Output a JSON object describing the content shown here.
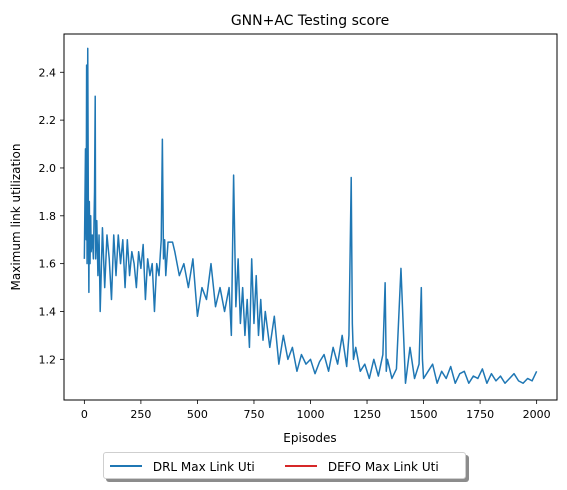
{
  "chart_data": {
    "type": "line",
    "title": "GNN+AC Testing score",
    "xlabel": "Episodes",
    "ylabel": "Maximum link utilization",
    "xlim": [
      -90,
      2090
    ],
    "ylim": [
      1.03,
      2.56
    ],
    "xticks": [
      0,
      250,
      500,
      750,
      1000,
      1250,
      1500,
      1750,
      2000
    ],
    "yticks": [
      1.2,
      1.4,
      1.6,
      1.8,
      2.0,
      2.2,
      2.4
    ],
    "xtick_labels": [
      "0",
      "250",
      "500",
      "750",
      "1000",
      "1250",
      "1500",
      "1750",
      "2000"
    ],
    "ytick_labels": [
      "1.2",
      "1.4",
      "1.6",
      "1.8",
      "2.0",
      "2.2",
      "2.4"
    ],
    "grid": false,
    "legend_position": "below-center",
    "series": [
      {
        "name": "DRL Max Link Uti",
        "color": "#1f77b4",
        "x": [
          0,
          5,
          8,
          10,
          12,
          15,
          18,
          20,
          22,
          25,
          28,
          30,
          35,
          40,
          45,
          48,
          50,
          55,
          60,
          65,
          70,
          80,
          90,
          100,
          110,
          120,
          130,
          140,
          150,
          160,
          170,
          180,
          190,
          200,
          210,
          220,
          230,
          240,
          250,
          260,
          270,
          280,
          290,
          300,
          310,
          320,
          330,
          340,
          345,
          350,
          355,
          360,
          370,
          380,
          390,
          400,
          420,
          440,
          460,
          480,
          500,
          520,
          540,
          560,
          580,
          600,
          620,
          640,
          650,
          660,
          670,
          680,
          690,
          700,
          710,
          720,
          730,
          740,
          750,
          760,
          770,
          780,
          790,
          800,
          820,
          840,
          860,
          880,
          900,
          920,
          940,
          960,
          980,
          1000,
          1020,
          1040,
          1060,
          1080,
          1100,
          1120,
          1140,
          1160,
          1170,
          1180,
          1185,
          1190,
          1200,
          1220,
          1240,
          1260,
          1280,
          1300,
          1320,
          1330,
          1335,
          1340,
          1360,
          1380,
          1400,
          1420,
          1440,
          1460,
          1480,
          1490,
          1495,
          1500,
          1520,
          1540,
          1560,
          1580,
          1600,
          1620,
          1640,
          1660,
          1680,
          1700,
          1720,
          1740,
          1760,
          1780,
          1800,
          1820,
          1840,
          1860,
          1880,
          1900,
          1920,
          1940,
          1960,
          1980,
          2000
        ],
        "y": [
          1.62,
          2.08,
          1.7,
          2.43,
          1.6,
          2.5,
          1.75,
          1.48,
          1.86,
          1.6,
          1.8,
          1.65,
          1.72,
          1.62,
          1.9,
          2.3,
          1.62,
          1.78,
          1.55,
          1.72,
          1.4,
          1.75,
          1.5,
          1.72,
          1.62,
          1.45,
          1.72,
          1.55,
          1.72,
          1.6,
          1.7,
          1.5,
          1.7,
          1.55,
          1.65,
          1.6,
          1.5,
          1.65,
          1.58,
          1.68,
          1.45,
          1.62,
          1.55,
          1.6,
          1.4,
          1.6,
          1.55,
          1.7,
          2.12,
          1.62,
          1.7,
          1.55,
          1.69,
          1.69,
          1.69,
          1.65,
          1.55,
          1.6,
          1.5,
          1.62,
          1.38,
          1.5,
          1.45,
          1.6,
          1.42,
          1.5,
          1.4,
          1.5,
          1.3,
          1.97,
          1.42,
          1.62,
          1.35,
          1.5,
          1.3,
          1.45,
          1.25,
          1.62,
          1.35,
          1.55,
          1.3,
          1.45,
          1.28,
          1.4,
          1.25,
          1.38,
          1.18,
          1.3,
          1.2,
          1.25,
          1.15,
          1.22,
          1.18,
          1.2,
          1.14,
          1.19,
          1.22,
          1.15,
          1.25,
          1.18,
          1.3,
          1.17,
          1.3,
          1.96,
          1.35,
          1.2,
          1.25,
          1.15,
          1.18,
          1.12,
          1.2,
          1.13,
          1.22,
          1.52,
          1.15,
          1.2,
          1.12,
          1.16,
          1.58,
          1.1,
          1.25,
          1.12,
          1.18,
          1.5,
          1.2,
          1.12,
          1.15,
          1.18,
          1.1,
          1.15,
          1.12,
          1.17,
          1.1,
          1.14,
          1.15,
          1.1,
          1.13,
          1.12,
          1.16,
          1.1,
          1.14,
          1.11,
          1.13,
          1.1,
          1.12,
          1.14,
          1.11,
          1.1,
          1.12,
          1.11,
          1.15
        ]
      },
      {
        "name": "DEFO Max Link Uti",
        "color": "#d62728",
        "x": [],
        "y": []
      }
    ]
  }
}
